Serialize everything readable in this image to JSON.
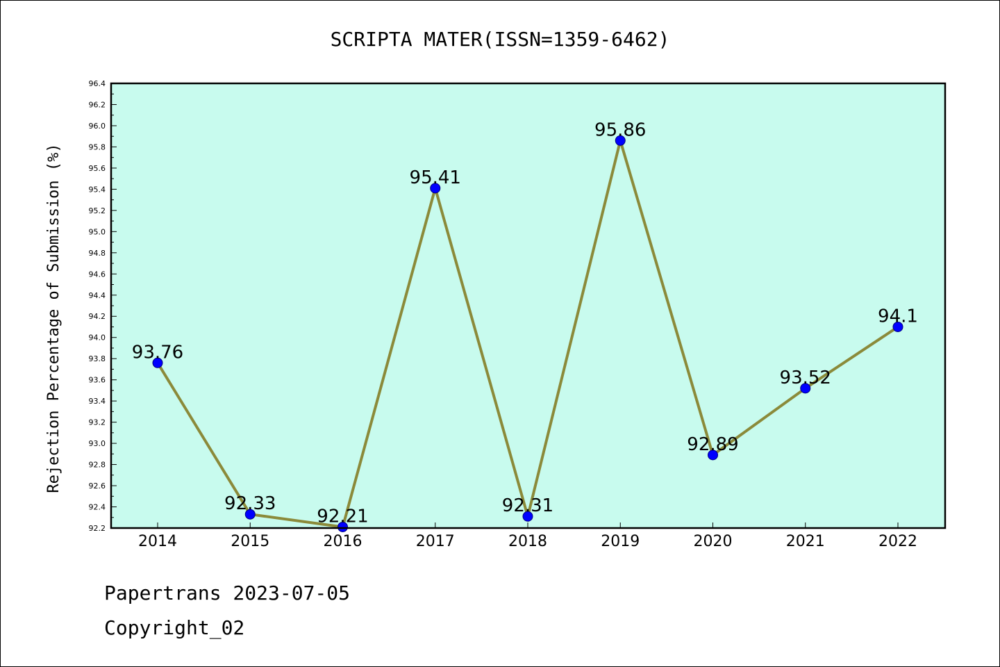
{
  "colors": {
    "plot_background": "#c8fbee",
    "line": "#8b8a3a",
    "marker": "#0000ff",
    "marker_edge": "#000080"
  },
  "chart_data": {
    "type": "line",
    "title": "SCRIPTA MATER(ISSN=1359-6462)",
    "xlabel": "",
    "ylabel": "Rejection Percentage of Submission (%)",
    "categories": [
      "2014",
      "2015",
      "2016",
      "2017",
      "2018",
      "2019",
      "2020",
      "2021",
      "2022"
    ],
    "series": [
      {
        "values": [
          93.76,
          92.33,
          92.21,
          95.41,
          92.31,
          95.86,
          92.89,
          93.52,
          94.1
        ]
      }
    ],
    "value_labels": [
      "93.76",
      "92.33",
      "92.21",
      "95.41",
      "92.31",
      "95.86",
      "92.89",
      "93.52",
      "94.1"
    ],
    "ylim": [
      92.2,
      96.4
    ],
    "yticks": [
      "92.2",
      "92.4",
      "92.6",
      "92.8",
      "93.0",
      "93.2",
      "93.4",
      "93.6",
      "93.8",
      "94.0",
      "94.2",
      "94.4",
      "94.6",
      "94.8",
      "95.0",
      "95.2",
      "95.4",
      "95.6",
      "95.8",
      "96.0",
      "96.2",
      "96.4"
    ],
    "grid": false,
    "legend": "none"
  },
  "footer": {
    "line1": "Papertrans 2023-07-05",
    "line2": "Copyright_02"
  }
}
